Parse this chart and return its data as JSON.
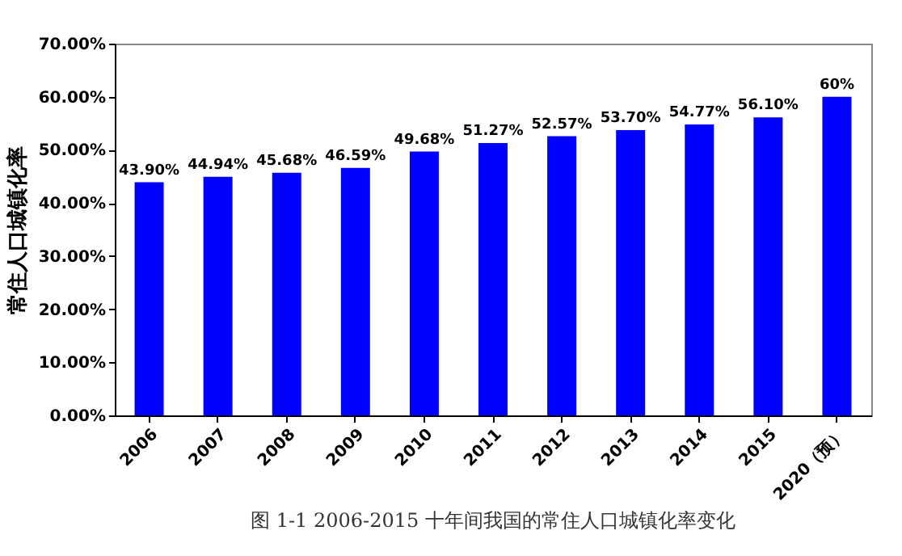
{
  "chart_data": {
    "type": "bar",
    "ylabel": "常住人口城镇化率",
    "categories": [
      "2006",
      "2007",
      "2008",
      "2009",
      "2010",
      "2011",
      "2012",
      "2013",
      "2014",
      "2015",
      "2020（预）"
    ],
    "values": [
      43.9,
      44.94,
      45.68,
      46.59,
      49.68,
      51.27,
      52.57,
      53.7,
      54.77,
      56.1,
      60
    ],
    "value_labels": [
      "43.90%",
      "44.94%",
      "45.68%",
      "46.59%",
      "49.68%",
      "51.27%",
      "52.57%",
      "53.70%",
      "54.77%",
      "56.10%",
      "60%"
    ],
    "color": "#0000ff",
    "ylim": [
      0,
      70
    ],
    "yticks": [
      {
        "value": 0,
        "label": "0.00%"
      },
      {
        "value": 10,
        "label": "10.00%"
      },
      {
        "value": 20,
        "label": "20.00%"
      },
      {
        "value": 30,
        "label": "30.00%"
      },
      {
        "value": 40,
        "label": "40.00%"
      },
      {
        "value": 50,
        "label": "50.00%"
      },
      {
        "value": 60,
        "label": "60.00%"
      },
      {
        "value": 70,
        "label": "70.00%"
      }
    ],
    "annotations": [
      "图 1-1 2006-2015 十年间我国的常住人口城镇化率变化"
    ]
  }
}
